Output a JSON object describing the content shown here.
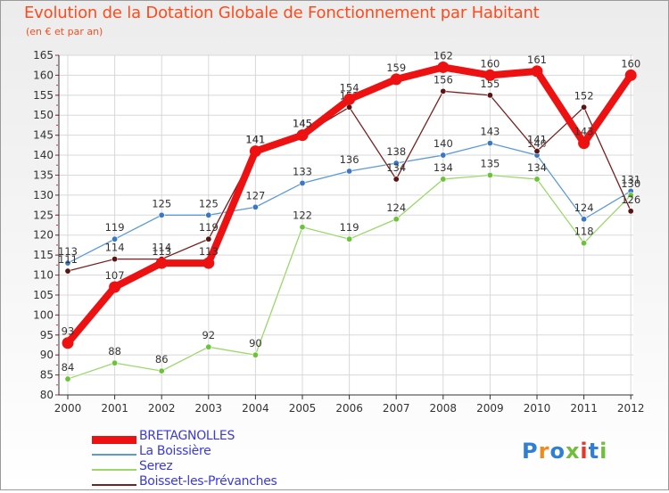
{
  "title": "Evolution de la Dotation Globale de Fonctionnement par Habitant",
  "subtitle": "(en € et par an)",
  "logo": {
    "text": "Proxiti",
    "letter_colors": [
      "#2f7fd4",
      "#f08a1c",
      "#2f7fd4",
      "#6fbf3a",
      "#e23a2a",
      "#2f7fd4",
      "#6fbf3a"
    ]
  },
  "chart_data": {
    "type": "line",
    "title": "Evolution de la Dotation Globale de Fonctionnement par Habitant",
    "subtitle": "(en € et par an)",
    "xlabel": "",
    "ylabel": "",
    "ylim": [
      80,
      165
    ],
    "yticks": [
      80,
      85,
      90,
      95,
      100,
      105,
      110,
      115,
      120,
      125,
      130,
      135,
      140,
      145,
      150,
      155,
      160,
      165
    ],
    "grid": true,
    "x": [
      "2000",
      "2001",
      "2002",
      "2003",
      "2004",
      "2005",
      "2006",
      "2007",
      "2008",
      "2009",
      "2010",
      "2011",
      "2012"
    ],
    "series": [
      {
        "name": "BRETAGNOLLES",
        "color": "#ee1111",
        "emphasis": true,
        "values": [
          93,
          107,
          113,
          113,
          141,
          145,
          154,
          159,
          162,
          160,
          161,
          143,
          160
        ]
      },
      {
        "name": "La Boissière",
        "color": "#5b9ad6",
        "marker": "#3b78c4",
        "values": [
          113,
          119,
          125,
          125,
          127,
          133,
          136,
          138,
          140,
          143,
          140,
          124,
          131
        ]
      },
      {
        "name": "Serez",
        "color": "#9ad86a",
        "marker": "#6cc23a",
        "values": [
          84,
          88,
          86,
          92,
          90,
          122,
          119,
          124,
          134,
          135,
          134,
          118,
          130
        ]
      },
      {
        "name": "Boisset-les-Prévanches",
        "color": "#7a1f1f",
        "marker": "#5a1414",
        "values": [
          111,
          114,
          114,
          119,
          141,
          145,
          152,
          134,
          156,
          155,
          141,
          152,
          126
        ]
      }
    ]
  }
}
